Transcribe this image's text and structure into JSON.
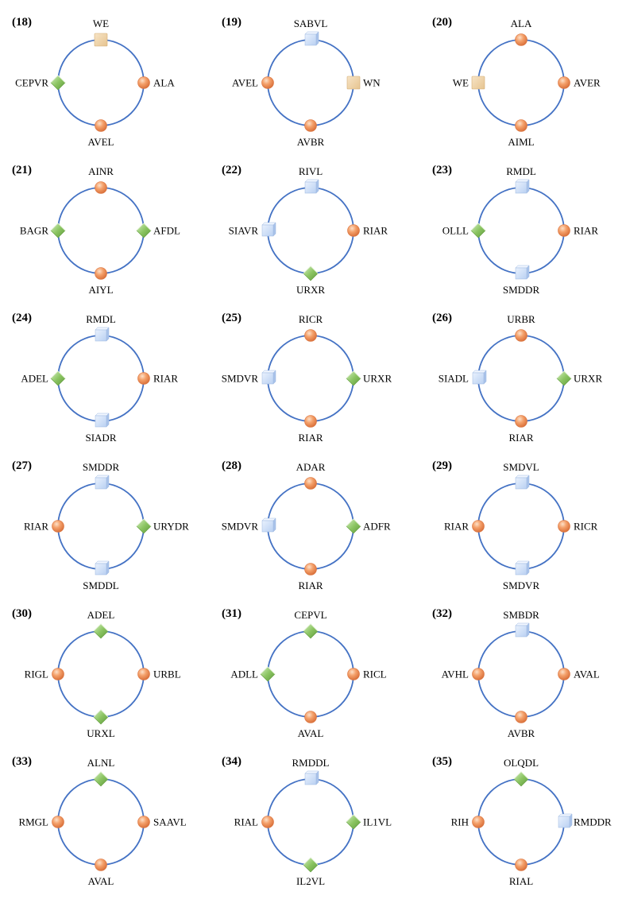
{
  "legend_colors": {
    "ring": "#4472c4",
    "sphere": "#f0955a",
    "diamond": "#8cc563",
    "cube": "#cfe0fa",
    "square": "#efd3a8"
  },
  "panels": [
    {
      "num": "(18)",
      "nodes": [
        {
          "label": "WE",
          "shape": "square"
        },
        {
          "label": "ALA",
          "shape": "sphere"
        },
        {
          "label": "AVEL",
          "shape": "sphere"
        },
        {
          "label": "CEPVR",
          "shape": "diamond"
        }
      ]
    },
    {
      "num": "(19)",
      "nodes": [
        {
          "label": "SABVL",
          "shape": "cube"
        },
        {
          "label": "WN",
          "shape": "square"
        },
        {
          "label": "AVBR",
          "shape": "sphere"
        },
        {
          "label": "AVEL",
          "shape": "sphere"
        }
      ]
    },
    {
      "num": "(20)",
      "nodes": [
        {
          "label": "ALA",
          "shape": "sphere"
        },
        {
          "label": "AVER",
          "shape": "sphere"
        },
        {
          "label": "AIML",
          "shape": "sphere"
        },
        {
          "label": "WE",
          "shape": "square"
        }
      ]
    },
    {
      "num": "(21)",
      "nodes": [
        {
          "label": "AINR",
          "shape": "sphere"
        },
        {
          "label": "AFDL",
          "shape": "diamond"
        },
        {
          "label": "AIYL",
          "shape": "sphere"
        },
        {
          "label": "BAGR",
          "shape": "diamond"
        }
      ]
    },
    {
      "num": "(22)",
      "nodes": [
        {
          "label": "RIVL",
          "shape": "cube"
        },
        {
          "label": "RIAR",
          "shape": "sphere"
        },
        {
          "label": "URXR",
          "shape": "diamond"
        },
        {
          "label": "SIAVR",
          "shape": "cube"
        }
      ]
    },
    {
      "num": "(23)",
      "nodes": [
        {
          "label": "RMDL",
          "shape": "cube"
        },
        {
          "label": "RIAR",
          "shape": "sphere"
        },
        {
          "label": "SMDDR",
          "shape": "cube"
        },
        {
          "label": "OLLL",
          "shape": "diamond"
        }
      ]
    },
    {
      "num": "(24)",
      "nodes": [
        {
          "label": "RMDL",
          "shape": "cube"
        },
        {
          "label": "RIAR",
          "shape": "sphere"
        },
        {
          "label": "SIADR",
          "shape": "cube"
        },
        {
          "label": "ADEL",
          "shape": "diamond"
        }
      ]
    },
    {
      "num": "(25)",
      "nodes": [
        {
          "label": "RICR",
          "shape": "sphere"
        },
        {
          "label": "URXR",
          "shape": "diamond"
        },
        {
          "label": "RIAR",
          "shape": "sphere"
        },
        {
          "label": "SMDVR",
          "shape": "cube"
        }
      ]
    },
    {
      "num": "(26)",
      "nodes": [
        {
          "label": "URBR",
          "shape": "sphere"
        },
        {
          "label": "URXR",
          "shape": "diamond"
        },
        {
          "label": "RIAR",
          "shape": "sphere"
        },
        {
          "label": "SIADL",
          "shape": "cube"
        }
      ]
    },
    {
      "num": "(27)",
      "nodes": [
        {
          "label": "SMDDR",
          "shape": "cube"
        },
        {
          "label": "URYDR",
          "shape": "diamond"
        },
        {
          "label": "SMDDL",
          "shape": "cube"
        },
        {
          "label": "RIAR",
          "shape": "sphere"
        }
      ]
    },
    {
      "num": "(28)",
      "nodes": [
        {
          "label": "ADAR",
          "shape": "sphere"
        },
        {
          "label": "ADFR",
          "shape": "diamond"
        },
        {
          "label": "RIAR",
          "shape": "sphere"
        },
        {
          "label": "SMDVR",
          "shape": "cube"
        }
      ]
    },
    {
      "num": "(29)",
      "nodes": [
        {
          "label": "SMDVL",
          "shape": "cube"
        },
        {
          "label": "RICR",
          "shape": "sphere"
        },
        {
          "label": "SMDVR",
          "shape": "cube"
        },
        {
          "label": "RIAR",
          "shape": "sphere"
        }
      ]
    },
    {
      "num": "(30)",
      "nodes": [
        {
          "label": "ADEL",
          "shape": "diamond"
        },
        {
          "label": "URBL",
          "shape": "sphere"
        },
        {
          "label": "URXL",
          "shape": "diamond"
        },
        {
          "label": "RIGL",
          "shape": "sphere"
        }
      ]
    },
    {
      "num": "(31)",
      "nodes": [
        {
          "label": "CEPVL",
          "shape": "diamond"
        },
        {
          "label": "RICL",
          "shape": "sphere"
        },
        {
          "label": "AVAL",
          "shape": "sphere"
        },
        {
          "label": "ADLL",
          "shape": "diamond"
        }
      ]
    },
    {
      "num": "(32)",
      "nodes": [
        {
          "label": "SMBDR",
          "shape": "cube"
        },
        {
          "label": "AVAL",
          "shape": "sphere"
        },
        {
          "label": "AVBR",
          "shape": "sphere"
        },
        {
          "label": "AVHL",
          "shape": "sphere"
        }
      ]
    },
    {
      "num": "(33)",
      "nodes": [
        {
          "label": "ALNL",
          "shape": "diamond"
        },
        {
          "label": "SAAVL",
          "shape": "sphere"
        },
        {
          "label": "AVAL",
          "shape": "sphere"
        },
        {
          "label": "RMGL",
          "shape": "sphere"
        }
      ]
    },
    {
      "num": "(34)",
      "nodes": [
        {
          "label": "RMDDL",
          "shape": "cube"
        },
        {
          "label": "IL1VL",
          "shape": "diamond"
        },
        {
          "label": "IL2VL",
          "shape": "diamond"
        },
        {
          "label": "RIAL",
          "shape": "sphere"
        }
      ]
    },
    {
      "num": "(35)",
      "nodes": [
        {
          "label": "OLQDL",
          "shape": "diamond"
        },
        {
          "label": "RMDDR",
          "shape": "cube"
        },
        {
          "label": "RIAL",
          "shape": "sphere"
        },
        {
          "label": "RIH",
          "shape": "sphere"
        }
      ]
    }
  ]
}
